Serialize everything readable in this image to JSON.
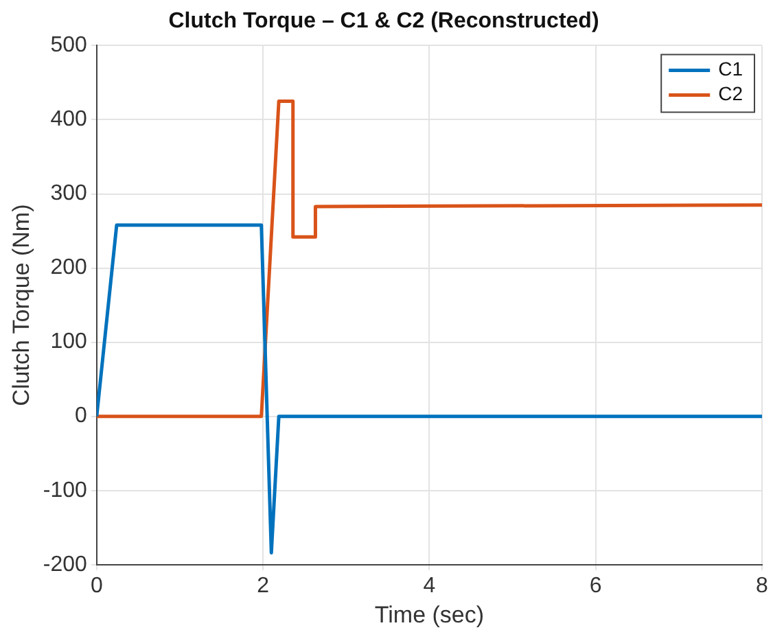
{
  "chart_data": {
    "type": "line",
    "title": "Clutch Torque – C1 & C2 (Reconstructed)",
    "xlabel": "Time (sec)",
    "ylabel": "Clutch Torque (Nm)",
    "xlim": [
      0,
      8
    ],
    "xticks": [
      0,
      2,
      4,
      6,
      8
    ],
    "ylim": [
      -200,
      500
    ],
    "yticks": [
      -200,
      -100,
      0,
      100,
      200,
      300,
      400,
      500
    ],
    "grid": true,
    "legend": "top right",
    "marker": "none",
    "line_style": "solid",
    "series": [
      {
        "name": "C1",
        "color": "#0072bd",
        "x": [
          0,
          0.24,
          1.98,
          2.1,
          2.19,
          8
        ],
        "values": [
          0,
          258,
          258,
          -184,
          0,
          0
        ]
      },
      {
        "name": "C2",
        "color": "#d95319",
        "x": [
          0,
          1.98,
          2.19,
          2.36,
          2.36,
          2.63,
          2.63,
          8
        ],
        "values": [
          0,
          0,
          425,
          425,
          242,
          242,
          283,
          285
        ]
      }
    ]
  }
}
